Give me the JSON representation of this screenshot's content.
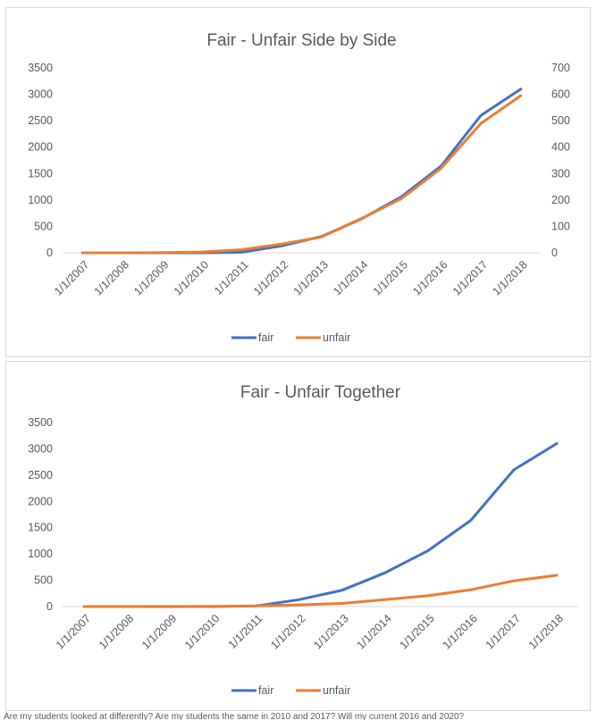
{
  "colors": {
    "fair": "#4472C4",
    "unfair": "#ED7D31",
    "axis": "#d9d9d9",
    "text": "#595959"
  },
  "footnote": "Are my students looked at differently? Are my students the same in 2010 and 2017? Will my current 2016 and 2020?",
  "chart_data": [
    {
      "type": "line",
      "title": "Fair - Unfair Side by Side",
      "categories": [
        "1/1/2007",
        "1/1/2008",
        "1/1/2009",
        "1/1/2010",
        "1/1/2011",
        "1/1/2012",
        "1/1/2013",
        "1/1/2014",
        "1/1/2015",
        "1/1/2016",
        "1/1/2017",
        "1/1/2018"
      ],
      "y_ticks": [
        "0",
        "500",
        "1000",
        "1500",
        "2000",
        "2500",
        "3000",
        "3500"
      ],
      "y2_ticks": [
        "0",
        "100",
        "200",
        "300",
        "400",
        "500",
        "600",
        "700"
      ],
      "ylim": [
        0,
        3500
      ],
      "y2lim": [
        0,
        700
      ],
      "legend": "bottom",
      "series": [
        {
          "name": "fair",
          "axis": "primary",
          "values": [
            0,
            0,
            0,
            0,
            10,
            130,
            310,
            640,
            1060,
            1640,
            2600,
            3100
          ]
        },
        {
          "name": "unfair",
          "axis": "secondary",
          "values": [
            0,
            0,
            1,
            3,
            12,
            33,
            60,
            130,
            205,
            320,
            490,
            595
          ]
        }
      ]
    },
    {
      "type": "line",
      "title": "Fair - Unfair Together",
      "categories": [
        "1/1/2007",
        "1/1/2008",
        "1/1/2009",
        "1/1/2010",
        "1/1/2011",
        "1/1/2012",
        "1/1/2013",
        "1/1/2014",
        "1/1/2015",
        "1/1/2016",
        "1/1/2017",
        "1/1/2018"
      ],
      "y_ticks": [
        "0",
        "500",
        "1000",
        "1500",
        "2000",
        "2500",
        "3000",
        "3500"
      ],
      "ylim": [
        0,
        3500
      ],
      "legend": "bottom",
      "series": [
        {
          "name": "fair",
          "axis": "primary",
          "values": [
            0,
            0,
            0,
            0,
            10,
            130,
            310,
            640,
            1060,
            1640,
            2600,
            3100
          ]
        },
        {
          "name": "unfair",
          "axis": "primary",
          "values": [
            0,
            0,
            1,
            3,
            12,
            33,
            60,
            130,
            205,
            320,
            490,
            595
          ]
        }
      ]
    }
  ]
}
